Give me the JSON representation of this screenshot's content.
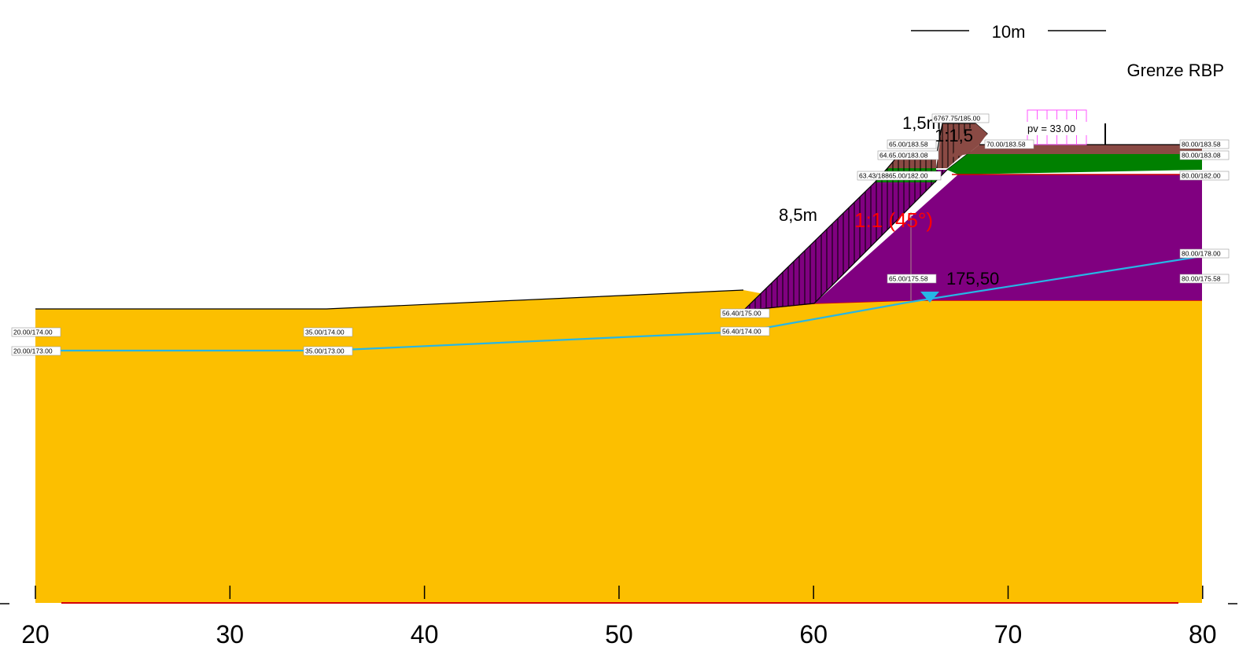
{
  "scale_bar": {
    "label": "10m"
  },
  "boundary": {
    "label": "Grenze RBP"
  },
  "load": {
    "label": "pv = 33.00",
    "color": "#ff55ff"
  },
  "annotations": {
    "berm_width": "1,5m",
    "berm_slope": "1:1,5",
    "height": "8,5m",
    "slope": "1:1 (45°)",
    "water_level": "175,50",
    "water_color": "#26b6e6",
    "slope_color": "#ff0000"
  },
  "axis": {
    "ticks": [
      "20",
      "30",
      "40",
      "50",
      "60",
      "70",
      "80"
    ]
  },
  "layers": {
    "sand": "#fcbf00",
    "clay": "#800080",
    "grass": "#008000",
    "topsoil": "#8a4a44",
    "base": "#d40000"
  },
  "points": [
    {
      "text": "20.00/174.00"
    },
    {
      "text": "20.00/173.00"
    },
    {
      "text": "35.00/174.00"
    },
    {
      "text": "35.00/173.00"
    },
    {
      "text": "56.40/175.00"
    },
    {
      "text": "56.40/174.00"
    },
    {
      "text": "65.00/175.58"
    },
    {
      "text": "63.43/18865.00/182.00"
    },
    {
      "text": "64.65.00/183.08"
    },
    {
      "text": "65.00/183.58"
    },
    {
      "text": "6767.75/185.00"
    },
    {
      "text": "70.00/183.58"
    },
    {
      "text": "80.00/183.58"
    },
    {
      "text": "80.00/183.08"
    },
    {
      "text": "80.00/182.00"
    },
    {
      "text": "80.00/178.00"
    },
    {
      "text": "80.00/175.58"
    }
  ]
}
